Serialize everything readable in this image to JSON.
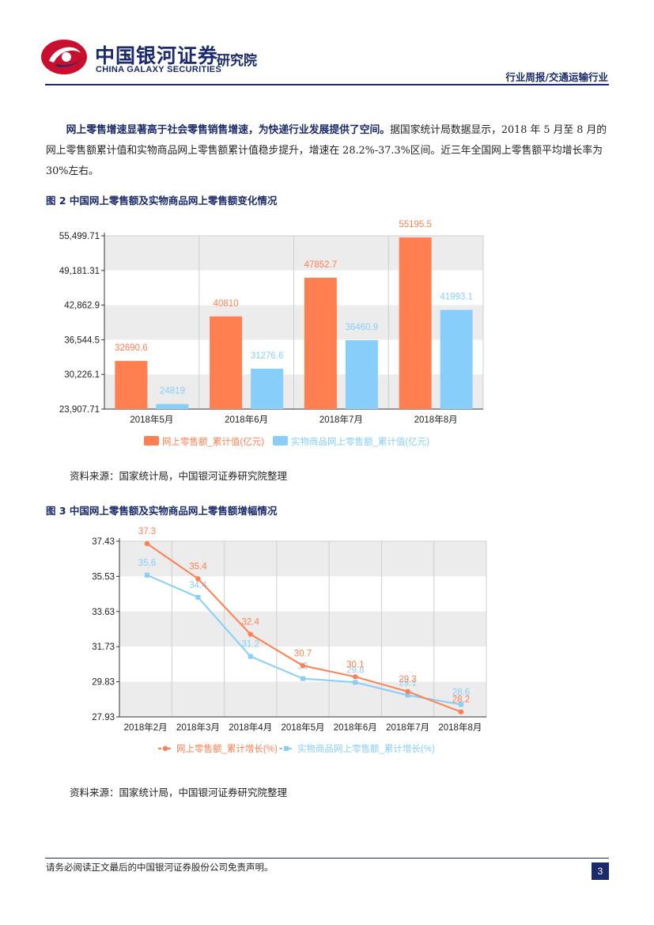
{
  "header": {
    "logo_cn": "中国银河证券",
    "logo_en": "CHINA GALAXY SECURITIES",
    "logo_inst": "研究院",
    "tag": "行业周报/交通运输行业"
  },
  "paragraph": {
    "bold": "网上零售增速显著高于社会零售销售增速，为快递行业发展提供了空间。",
    "text": "据国家统计局数据显示，2018 年 5 月至 8 月的网上零售额累计值和实物商品网上零售额累计值稳步提升，增速在 28.2%-37.3%区间。近三年全国网上零售额平均增长率为 30%左右。"
  },
  "figure2": {
    "title": "图 2 中国网上零售额及实物商品网上零售额变化情况",
    "source": "资料来源：国家统计局，中国银河证券研究院整理"
  },
  "figure3": {
    "title": "图 3 中国网上零售额及实物商品网上零售额增幅情况",
    "source": "资料来源：国家统计局，中国银河证券研究院整理"
  },
  "footer": {
    "disclaimer": "请务必阅读正文最后的中国银河证券股份公司免责声明。",
    "page": "3"
  },
  "colors": {
    "series_online": "#ff7f50",
    "series_physical": "#87cefa",
    "brand": "#1b2a6b"
  },
  "chart_data": [
    {
      "type": "bar",
      "categories": [
        "2018年5月",
        "2018年6月",
        "2018年7月",
        "2018年8月"
      ],
      "series": [
        {
          "name": "网上零售额_累计值(亿元)",
          "values": [
            32690.6,
            40810,
            47852.7,
            55195.5
          ],
          "labels": [
            "32690.6",
            "40810",
            "47852.7",
            "55195.5"
          ]
        },
        {
          "name": "实物商品网上零售额_累计值(亿元)",
          "values": [
            24819,
            31276.6,
            36460.9,
            41993.1
          ],
          "labels": [
            "24819",
            "31276.6",
            "36460.9",
            "41993.1"
          ]
        }
      ],
      "ylim": [
        23907.71,
        55499.71
      ],
      "yticks": [
        "23,907.71",
        "30,226.1",
        "36,544.5",
        "42,862.9",
        "49,181.31",
        "55,499.71"
      ],
      "legend": "bottom",
      "grid": true
    },
    {
      "type": "line",
      "categories": [
        "2018年2月",
        "2018年3月",
        "2018年4月",
        "2018年5月",
        "2018年6月",
        "2018年7月",
        "2018年8月"
      ],
      "series": [
        {
          "name": "网上零售额_累计增长(%)",
          "values": [
            37.3,
            35.4,
            32.4,
            30.7,
            30.1,
            29.3,
            28.2
          ],
          "labels": [
            "37.3",
            "35.4",
            "32.4",
            "30.7",
            "30.1",
            "29.3",
            "28.2"
          ]
        },
        {
          "name": "实物商品网上零售额_累计增长(%)",
          "values": [
            35.6,
            34.4,
            31.2,
            30,
            29.8,
            29.1,
            28.6
          ],
          "labels": [
            "35.6",
            "34.4",
            "31.2",
            "30",
            "29.8",
            "29.1",
            "28.6"
          ]
        }
      ],
      "ylim": [
        27.93,
        37.43
      ],
      "yticks": [
        "27.93",
        "29.83",
        "31.73",
        "33.63",
        "35.53",
        "37.43"
      ],
      "legend": "bottom",
      "grid": true
    }
  ]
}
